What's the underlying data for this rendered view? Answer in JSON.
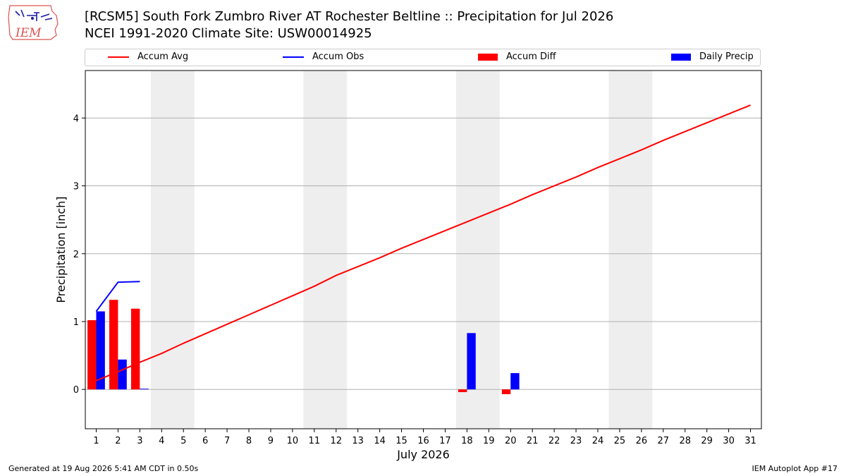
{
  "header": {
    "title": "[RCSM5] South Fork Zumbro River  AT Rochester Beltline :: Precipitation for Jul 2026",
    "subtitle": "NCEI 1991-2020 Climate Site: USW00014925",
    "logo_text": "IEM"
  },
  "footer": {
    "generated": "Generated at 19 Aug 2026 5:41 AM CDT in 0.50s",
    "app": "IEM Autoplot App #17"
  },
  "chart_data": {
    "type": "bar",
    "xlabel": "July 2026",
    "ylabel": "Precipitation [inch]",
    "ylim": [
      -0.58,
      4.7
    ],
    "xlim": [
      0.5,
      31.5
    ],
    "yticks": [
      0,
      1,
      2,
      3,
      4
    ],
    "xticks": [
      1,
      2,
      3,
      4,
      5,
      6,
      7,
      8,
      9,
      10,
      11,
      12,
      13,
      14,
      15,
      16,
      17,
      18,
      19,
      20,
      21,
      22,
      23,
      24,
      25,
      26,
      27,
      28,
      29,
      30,
      31
    ],
    "grid": "horizontal",
    "legend_placement": "top",
    "weekend_shading": [
      [
        4,
        5
      ],
      [
        11,
        12
      ],
      [
        18,
        19
      ],
      [
        25,
        26
      ]
    ],
    "colors": {
      "accum_avg": "#ff0000",
      "accum_obs": "#0000ff",
      "accum_diff": "#ff0000",
      "daily_precip": "#0000ff",
      "weekend": "#eeeeee",
      "grid": "#b0b0b0"
    },
    "series": [
      {
        "name": "Accum Avg",
        "kind": "line",
        "x": [
          1,
          2,
          3,
          4,
          5,
          6,
          7,
          8,
          9,
          10,
          11,
          12,
          13,
          14,
          15,
          16,
          17,
          18,
          19,
          20,
          21,
          22,
          23,
          24,
          25,
          26,
          27,
          28,
          29,
          30,
          31
        ],
        "values": [
          0.13,
          0.26,
          0.4,
          0.53,
          0.68,
          0.82,
          0.96,
          1.1,
          1.24,
          1.38,
          1.52,
          1.68,
          1.81,
          1.94,
          2.08,
          2.21,
          2.34,
          2.47,
          2.6,
          2.73,
          2.87,
          3.0,
          3.13,
          3.27,
          3.4,
          3.53,
          3.67,
          3.8,
          3.93,
          4.06,
          4.19
        ]
      },
      {
        "name": "Accum Obs",
        "kind": "line",
        "x": [
          1,
          2,
          3
        ],
        "values": [
          1.15,
          1.58,
          1.59
        ]
      },
      {
        "name": "Accum Diff",
        "kind": "bar",
        "x": [
          1,
          2,
          3,
          18,
          20
        ],
        "values": [
          1.02,
          1.32,
          1.19,
          -0.04,
          -0.07
        ]
      },
      {
        "name": "Daily Precip",
        "kind": "bar",
        "x": [
          1,
          2,
          3,
          18,
          20
        ],
        "values": [
          1.15,
          0.44,
          0.01,
          0.83,
          0.24
        ]
      }
    ]
  }
}
